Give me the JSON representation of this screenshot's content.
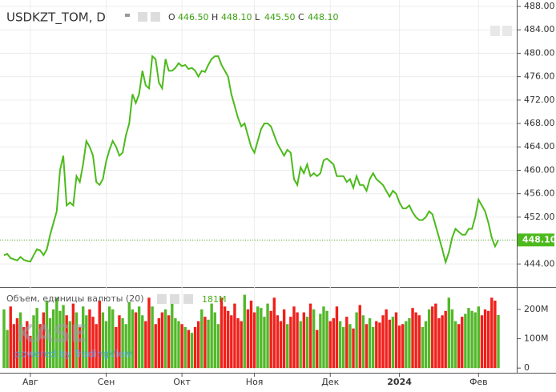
{
  "chart_data": [
    {
      "type": "line",
      "title": "USDKZT_TOM, D",
      "ohlc": [
        {
          "key": "O",
          "value": "446.50"
        },
        {
          "key": "H",
          "value": "448.10"
        },
        {
          "key": "L",
          "value": "445.50"
        },
        {
          "key": "C",
          "value": "448.10"
        }
      ],
      "color": "#4cba1c",
      "categories": [
        null,
        null,
        null,
        null,
        null,
        null,
        null,
        null,
        null,
        null,
        null,
        null,
        null,
        null,
        null,
        null,
        null,
        null,
        null,
        null,
        null,
        null,
        null,
        null,
        null,
        null,
        null,
        null,
        null,
        null,
        null,
        null,
        null,
        null,
        null,
        null,
        null,
        null,
        null,
        null,
        null,
        null,
        null,
        null,
        null,
        null,
        null,
        null,
        null,
        null,
        null,
        null,
        null,
        null,
        null,
        null,
        null,
        null,
        null,
        null,
        null,
        null,
        null,
        null,
        null,
        null,
        null,
        null,
        null,
        null,
        null,
        null,
        null,
        null,
        null,
        null,
        null,
        null,
        null,
        null,
        null,
        null,
        null,
        null,
        null,
        null,
        null,
        null,
        null,
        null,
        null,
        null,
        null,
        null,
        null,
        null,
        null,
        null,
        null,
        null,
        null,
        null,
        null,
        null,
        null,
        null,
        null,
        null,
        null,
        null,
        null,
        null,
        null,
        null,
        null,
        null,
        null,
        null,
        null,
        null,
        null,
        null,
        null,
        null,
        null,
        null,
        null,
        null,
        null,
        null,
        null,
        null,
        null,
        null,
        null,
        null,
        null,
        null,
        null,
        null,
        null,
        null,
        null,
        null,
        null,
        null,
        null,
        null,
        null,
        null,
        null
      ],
      "values": [
        445.5,
        445.7,
        445.0,
        444.8,
        444.6,
        445.2,
        444.7,
        444.5,
        444.4,
        445.5,
        446.5,
        446.3,
        445.5,
        446.5,
        449,
        451,
        453,
        460,
        462.5,
        454,
        454.5,
        454,
        459,
        458,
        461,
        465,
        464,
        462.5,
        458,
        457.5,
        458.5,
        461.5,
        463.5,
        465,
        464,
        462.5,
        463,
        466,
        468,
        473,
        471.5,
        473,
        477,
        474.5,
        474,
        479.5,
        479,
        475,
        474,
        479,
        477,
        477,
        477.5,
        478.3,
        477.8,
        478,
        477.3,
        477.5,
        477,
        476,
        477,
        476.8,
        478,
        479,
        479.5,
        479.5,
        478,
        477,
        476,
        473,
        471,
        469,
        467.5,
        468,
        466,
        464,
        463,
        465,
        467,
        468,
        468,
        467.5,
        466,
        464.5,
        463.5,
        462.5,
        463.5,
        463,
        458.5,
        457.5,
        460.5,
        459.5,
        461,
        459,
        459.5,
        459,
        459.5,
        461.7,
        462,
        461.5,
        461,
        459,
        459,
        459,
        458,
        458.5,
        457,
        459,
        457.5,
        457.5,
        456.5,
        458.5,
        459.5,
        458.5,
        458,
        457.5,
        456.5,
        455.5,
        456.5,
        456,
        454.5,
        453.5,
        453.5,
        454,
        452.8,
        452,
        451.5,
        451.5,
        452,
        453,
        452.5,
        450.5,
        448.5,
        446.5,
        444.3,
        446,
        448.5,
        450,
        449.5,
        449,
        449,
        450,
        450,
        452,
        455,
        454,
        453,
        451,
        448.5,
        447,
        448.1
      ],
      "last_label": "448.10",
      "ylim": [
        440.2,
        489.1
      ],
      "yticks": [
        {
          "value": 444,
          "label": "444.00"
        },
        {
          "value": 448,
          "label": "448.00"
        },
        {
          "value": 452,
          "label": "452.00"
        },
        {
          "value": 456,
          "label": "456.00"
        },
        {
          "value": 460,
          "label": "460.00"
        },
        {
          "value": 464,
          "label": "464.00"
        },
        {
          "value": 468,
          "label": "468.00"
        },
        {
          "value": 472,
          "label": "472.00"
        },
        {
          "value": 476,
          "label": "476.00"
        },
        {
          "value": 480,
          "label": "480.00"
        },
        {
          "value": 484,
          "label": "484.00"
        },
        {
          "value": 488,
          "label": "488.00"
        }
      ],
      "xticks": [
        {
          "value": 8,
          "label": "Авг"
        },
        {
          "value": 31,
          "label": "Сен"
        },
        {
          "value": 54,
          "label": "Окт"
        },
        {
          "value": 76,
          "label": "Ноя"
        },
        {
          "value": 99,
          "label": "Дек"
        },
        {
          "value": 120,
          "label": "2024"
        },
        {
          "value": 144,
          "label": "Фев"
        }
      ],
      "grid": true,
      "watermark": "KASE",
      "credit": "powered by TradingView"
    },
    {
      "type": "bar",
      "title": "Объем, единицы валюты (20)",
      "last_label": "181M",
      "up_color": "#53b82a",
      "down_color": "#f0201a",
      "values": [
        200000000,
        130000000,
        210000000,
        150000000,
        170000000,
        190000000,
        140000000,
        160000000,
        110000000,
        180000000,
        205000000,
        150000000,
        190000000,
        230000000,
        170000000,
        200000000,
        240000000,
        195000000,
        215000000,
        180000000,
        160000000,
        220000000,
        190000000,
        140000000,
        210000000,
        180000000,
        200000000,
        175000000,
        150000000,
        230000000,
        190000000,
        160000000,
        210000000,
        200000000,
        140000000,
        180000000,
        170000000,
        150000000,
        225000000,
        200000000,
        190000000,
        210000000,
        180000000,
        160000000,
        240000000,
        210000000,
        150000000,
        170000000,
        190000000,
        200000000,
        180000000,
        230000000,
        170000000,
        160000000,
        150000000,
        140000000,
        130000000,
        120000000,
        140000000,
        160000000,
        200000000,
        175000000,
        165000000,
        220000000,
        190000000,
        150000000,
        240000000,
        210000000,
        195000000,
        180000000,
        220000000,
        170000000,
        160000000,
        250000000,
        200000000,
        230000000,
        190000000,
        210000000,
        205000000,
        175000000,
        220000000,
        195000000,
        240000000,
        180000000,
        160000000,
        200000000,
        150000000,
        175000000,
        210000000,
        190000000,
        160000000,
        190000000,
        175000000,
        220000000,
        200000000,
        130000000,
        185000000,
        210000000,
        195000000,
        160000000,
        170000000,
        210000000,
        160000000,
        140000000,
        175000000,
        150000000,
        135000000,
        190000000,
        215000000,
        180000000,
        150000000,
        170000000,
        140000000,
        160000000,
        155000000,
        180000000,
        200000000,
        165000000,
        175000000,
        190000000,
        145000000,
        150000000,
        160000000,
        170000000,
        205000000,
        190000000,
        180000000,
        140000000,
        160000000,
        200000000,
        210000000,
        220000000,
        170000000,
        180000000,
        195000000,
        240000000,
        200000000,
        160000000,
        150000000,
        175000000,
        185000000,
        205000000,
        195000000,
        190000000,
        210000000,
        180000000,
        200000000,
        195000000,
        240000000,
        230000000,
        181000000
      ],
      "ylim": [
        -16000000,
        271000000
      ],
      "yticks": [
        0,
        {
          "value": 100000000,
          "label": "100M"
        },
        {
          "value": 200000000,
          "label": "200M"
        }
      ]
    }
  ]
}
